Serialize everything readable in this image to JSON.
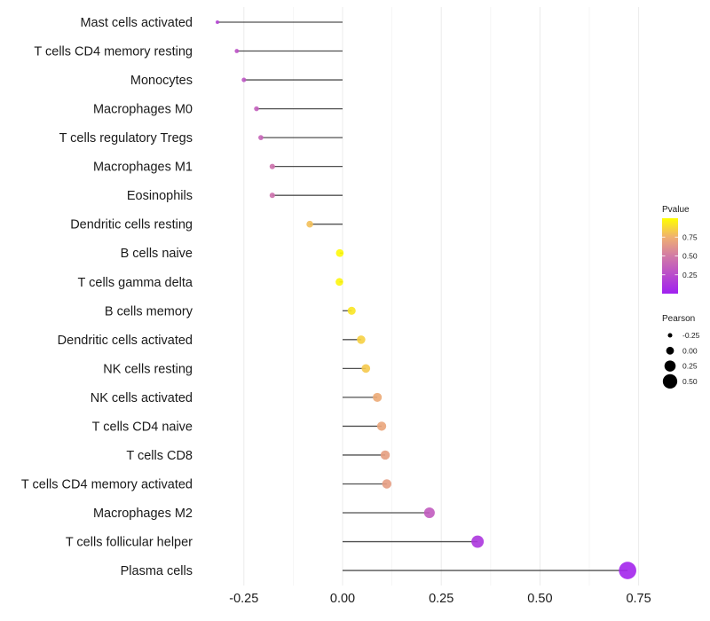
{
  "chart_data": {
    "type": "lollipop",
    "title": "",
    "xlabel": "",
    "ylabel": "",
    "xlim": [
      -0.34,
      0.76
    ],
    "xticks": [
      -0.25,
      0.0,
      0.25,
      0.5,
      0.75
    ],
    "xtick_labels": [
      "-0.25",
      "0.00",
      "0.25",
      "0.50",
      "0.75"
    ],
    "grid": true,
    "categories": [
      "Mast cells activated",
      "T cells CD4 memory resting",
      "Monocytes",
      "Macrophages M0",
      "T cells regulatory  Tregs",
      "Macrophages M1",
      "Eosinophils",
      "Dendritic cells resting",
      "B cells naive",
      "T cells gamma delta",
      "B cells memory",
      "Dendritic cells activated",
      "NK cells resting",
      "NK cells activated",
      "T cells CD4 naive",
      "T cells CD8",
      "T cells CD4 memory activated",
      "Macrophages M2",
      "T cells follicular helper",
      "Plasma cells"
    ],
    "pearson": [
      -0.317,
      -0.268,
      -0.25,
      -0.218,
      -0.207,
      -0.178,
      -0.178,
      -0.083,
      -0.007,
      -0.008,
      0.023,
      0.047,
      0.059,
      0.088,
      0.099,
      0.108,
      0.112,
      0.22,
      0.342,
      0.722
    ],
    "pvalue": [
      0.2,
      0.28,
      0.3,
      0.35,
      0.38,
      0.45,
      0.45,
      0.8,
      0.98,
      0.97,
      0.92,
      0.85,
      0.83,
      0.72,
      0.7,
      0.67,
      0.66,
      0.33,
      0.12,
      0.03
    ],
    "color_legend": {
      "title": "Pvalue",
      "range": [
        0.0,
        1.0
      ],
      "ticks": [
        0.25,
        0.5,
        0.75
      ],
      "tick_labels": [
        "0.25",
        "0.50",
        "0.75"
      ],
      "low_color": "#A020F0",
      "mid_color": "#D27AA6",
      "high_color": "#FFFF00",
      "position": "right"
    },
    "size_legend": {
      "title": "Pearson",
      "values": [
        -0.25,
        0.0,
        0.25,
        0.5
      ],
      "labels": [
        "-0.25",
        "0.00",
        "0.25",
        "0.50"
      ],
      "position": "right"
    }
  }
}
